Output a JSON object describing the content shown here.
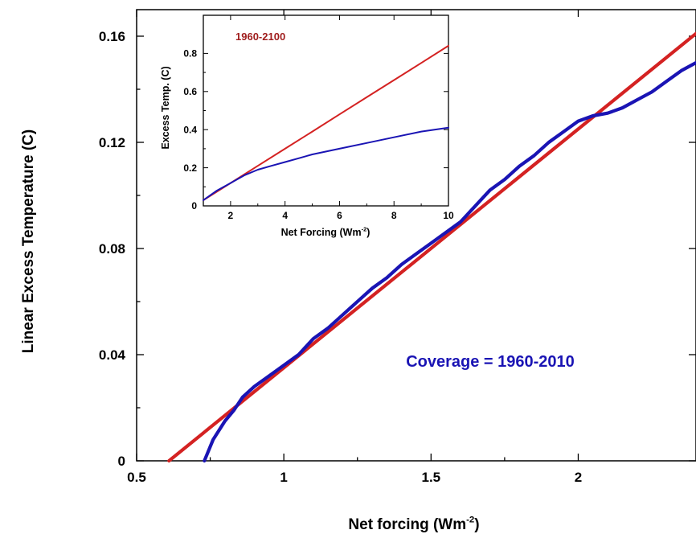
{
  "chart_data": [
    {
      "type": "line",
      "xlabel": "Net forcing (Wm",
      "xlabel_sup": "-2",
      "xlabel_close": ")",
      "ylabel": "Linear Excess Temperature (C)",
      "xlim": [
        0.5,
        2.4
      ],
      "ylim": [
        0,
        0.17
      ],
      "x_ticks": [
        0.5,
        1,
        1.5,
        2
      ],
      "x_tick_labels": [
        "0.5",
        "1",
        "1.5",
        "2"
      ],
      "y_ticks": [
        0,
        0.04,
        0.08,
        0.12,
        0.16
      ],
      "y_tick_labels": [
        "0",
        "0.04",
        "0.08",
        "0.12",
        "0.16"
      ],
      "annotation": "Coverage = 1960-2010",
      "annotation_color": "#1a14b4",
      "grid": false,
      "series": [
        {
          "color": "#d42222",
          "points": [
            [
              0.61,
              0
            ],
            [
              2.4,
              0.161
            ]
          ]
        },
        {
          "color": "#1a14b4",
          "points": [
            [
              0.73,
              0
            ],
            [
              0.76,
              0.008
            ],
            [
              0.8,
              0.015
            ],
            [
              0.83,
              0.019
            ],
            [
              0.86,
              0.024
            ],
            [
              0.9,
              0.028
            ],
            [
              0.95,
              0.032
            ],
            [
              1.0,
              0.036
            ],
            [
              1.05,
              0.04
            ],
            [
              1.1,
              0.046
            ],
            [
              1.15,
              0.05
            ],
            [
              1.2,
              0.055
            ],
            [
              1.25,
              0.06
            ],
            [
              1.3,
              0.065
            ],
            [
              1.35,
              0.069
            ],
            [
              1.4,
              0.074
            ],
            [
              1.45,
              0.078
            ],
            [
              1.5,
              0.082
            ],
            [
              1.55,
              0.086
            ],
            [
              1.6,
              0.09
            ],
            [
              1.65,
              0.096
            ],
            [
              1.7,
              0.102
            ],
            [
              1.75,
              0.106
            ],
            [
              1.8,
              0.111
            ],
            [
              1.85,
              0.115
            ],
            [
              1.9,
              0.12
            ],
            [
              1.95,
              0.124
            ],
            [
              2.0,
              0.128
            ],
            [
              2.05,
              0.13
            ],
            [
              2.1,
              0.131
            ],
            [
              2.15,
              0.133
            ],
            [
              2.2,
              0.136
            ],
            [
              2.25,
              0.139
            ],
            [
              2.3,
              0.143
            ],
            [
              2.35,
              0.147
            ],
            [
              2.4,
              0.15
            ]
          ]
        }
      ]
    },
    {
      "type": "line",
      "title": "1960-2100",
      "title_color": "#a01e1e",
      "xlabel": "Net Forcing (Wm",
      "xlabel_sup": "-2",
      "xlabel_close": ")",
      "ylabel": "Excess Temp. (C)",
      "xlim": [
        1,
        10
      ],
      "ylim": [
        0,
        1.0
      ],
      "x_ticks": [
        2,
        4,
        6,
        8,
        10
      ],
      "x_tick_labels": [
        "2",
        "4",
        "6",
        "8",
        "10"
      ],
      "y_ticks": [
        0,
        0.2,
        0.4,
        0.6,
        0.8
      ],
      "y_tick_labels": [
        "0",
        "0.2",
        "0.4",
        "0.6",
        "0.8"
      ],
      "grid": false,
      "series": [
        {
          "color": "#d42222",
          "points": [
            [
              1.0,
              0.03
            ],
            [
              2.0,
              0.12
            ],
            [
              3.0,
              0.21
            ],
            [
              4.0,
              0.3
            ],
            [
              5.0,
              0.39
            ],
            [
              6.0,
              0.48
            ],
            [
              7.0,
              0.57
            ],
            [
              8.0,
              0.66
            ],
            [
              9.0,
              0.75
            ],
            [
              10.0,
              0.84
            ]
          ]
        },
        {
          "color": "#1a14b4",
          "points": [
            [
              1.0,
              0.03
            ],
            [
              1.5,
              0.08
            ],
            [
              2.0,
              0.12
            ],
            [
              2.5,
              0.16
            ],
            [
              3.0,
              0.19
            ],
            [
              3.5,
              0.21
            ],
            [
              4.0,
              0.23
            ],
            [
              4.5,
              0.25
            ],
            [
              5.0,
              0.27
            ],
            [
              6.0,
              0.3
            ],
            [
              7.0,
              0.33
            ],
            [
              8.0,
              0.36
            ],
            [
              9.0,
              0.39
            ],
            [
              10.0,
              0.41
            ]
          ]
        }
      ]
    }
  ]
}
